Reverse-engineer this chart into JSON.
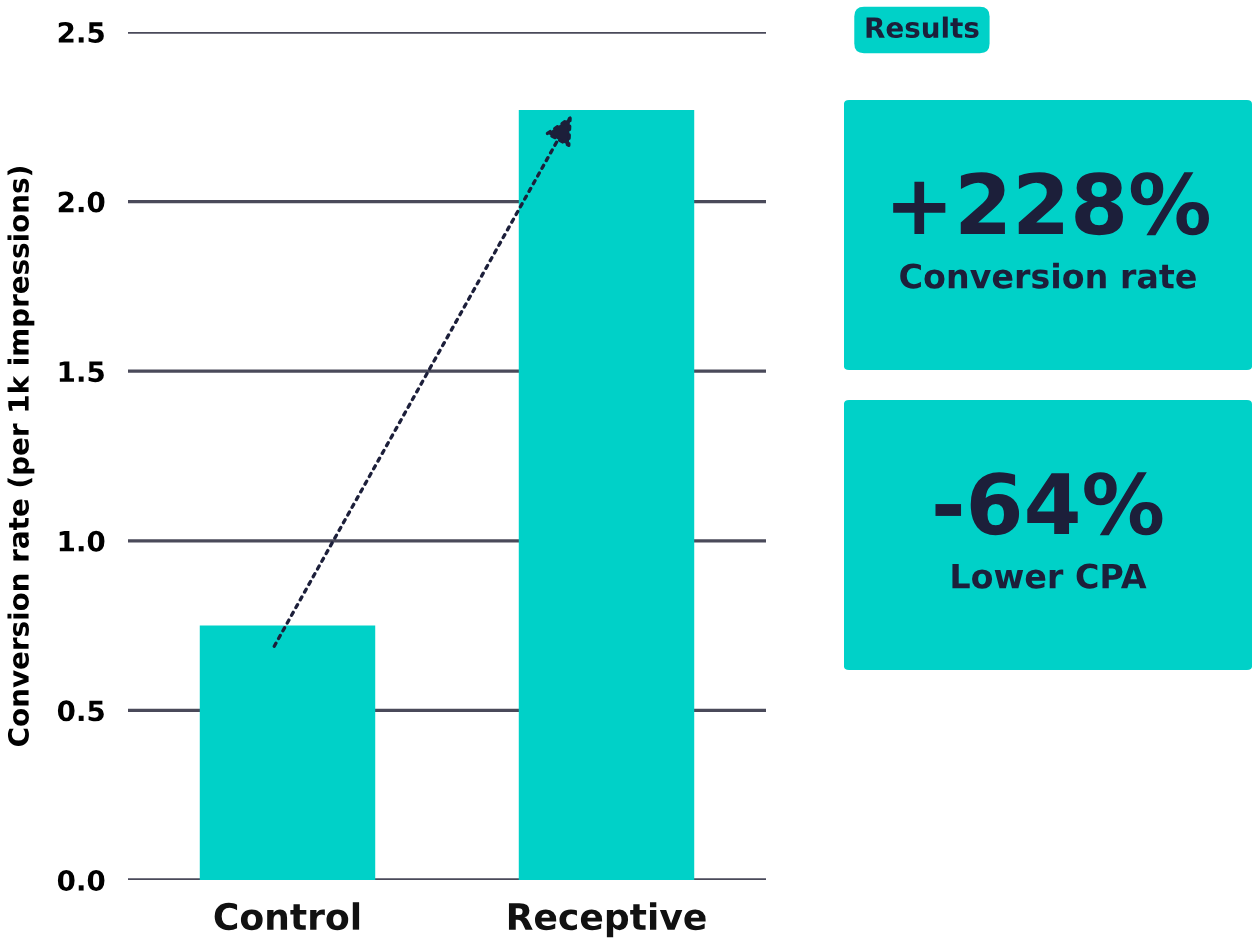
{
  "chart_data": {
    "type": "bar",
    "ylabel": "Conversion rate (per 1k impressions)",
    "categories": [
      "Control",
      "Receptive"
    ],
    "values": [
      0.75,
      2.27
    ],
    "color": "#00d1c8",
    "ylim": [
      0,
      2.5
    ],
    "yticks": [
      {
        "value": 0,
        "label": "0.0"
      },
      {
        "value": 0.5,
        "label": "0.5"
      },
      {
        "value": 1,
        "label": "1.0"
      },
      {
        "value": 1.5,
        "label": "1.5"
      },
      {
        "value": 2,
        "label": "2.0"
      },
      {
        "value": 2.5,
        "label": "2.5"
      }
    ],
    "grid": "y",
    "annotations": [
      "Results",
      "+228%",
      "Conversion rate",
      "-64%",
      "Lower CPA"
    ]
  }
}
